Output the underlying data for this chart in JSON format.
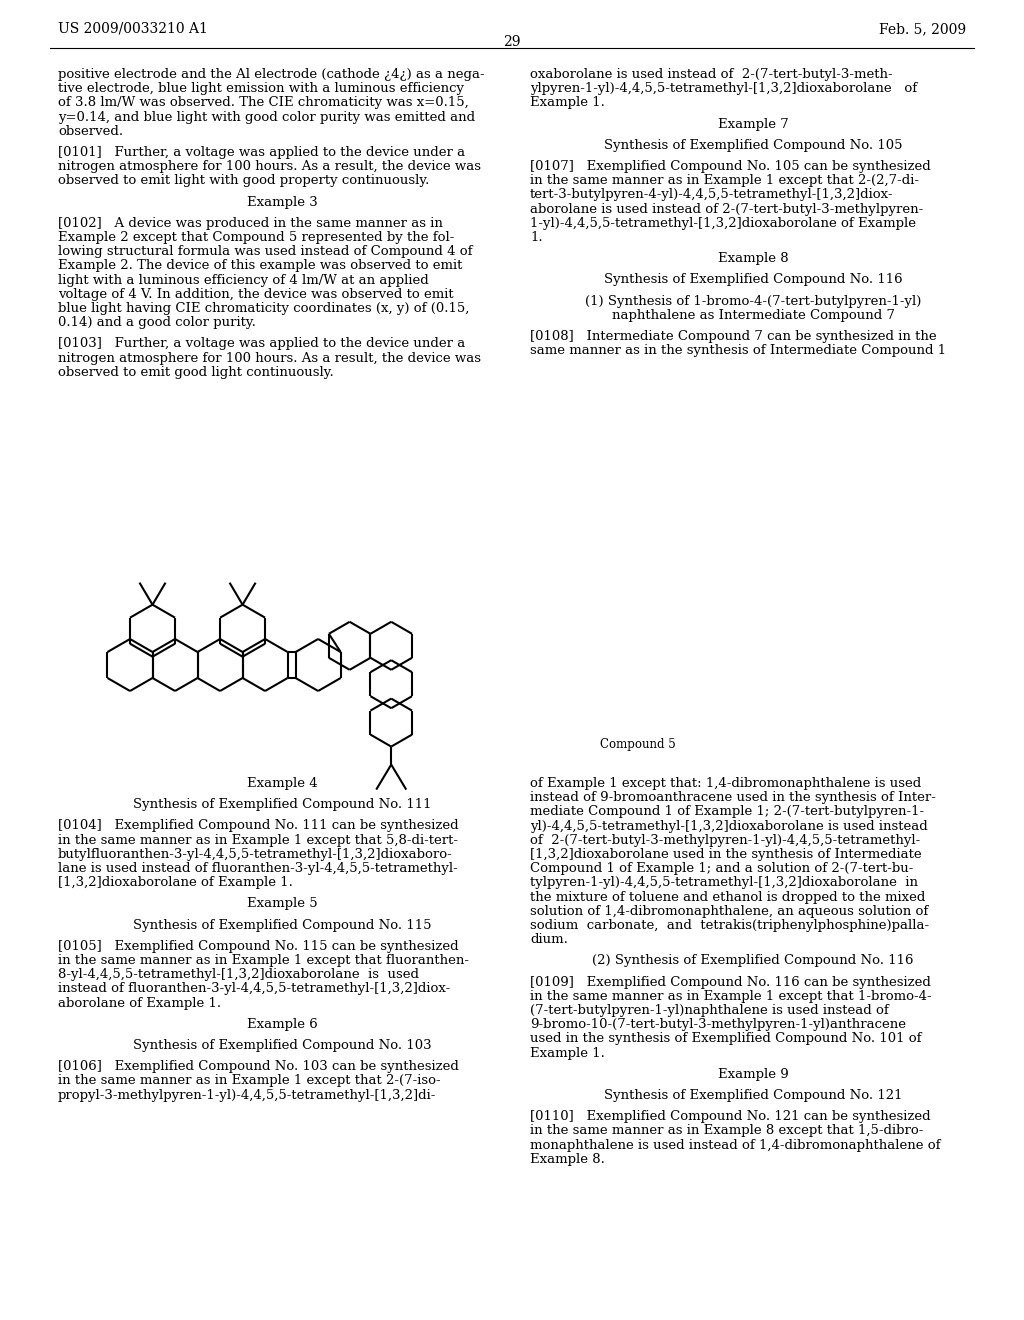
{
  "title_left": "US 2009/0033210 A1",
  "title_right": "Feb. 5, 2009",
  "page_number": "29",
  "background_color": "#ffffff",
  "top_left_text": [
    {
      "type": "body",
      "text": "positive electrode and the Al electrode (cathode ¿4¿) as a nega-\ntive electrode, blue light emission with a luminous efficiency\nof 3.8 lm/W was observed. The CIE chromaticity was x=0.15,\ny=0.14, and blue light with good color purity was emitted and\nobserved."
    },
    {
      "type": "para_indent",
      "text": "[0101]   Further, a voltage was applied to the device under a\nnitrogen atmosphere for 100 hours. As a result, the device was\nobserved to emit light with good property continuously."
    },
    {
      "type": "center",
      "text": "Example 3"
    },
    {
      "type": "para_indent",
      "text": "[0102]   A device was produced in the same manner as in\nExample 2 except that Compound 5 represented by the fol-\nlowing structural formula was used instead of Compound 4 of\nExample 2. The device of this example was observed to emit\nlight with a luminous efficiency of 4 lm/W at an applied\nvoltage of 4 V. In addition, the device was observed to emit\nblue light having CIE chromaticity coordinates (x, y) of (0.15,\n0.14) and a good color purity."
    },
    {
      "type": "para_indent",
      "text": "[0103]   Further, a voltage was applied to the device under a\nnitrogen atmosphere for 100 hours. As a result, the device was\nobserved to emit good light continuously."
    }
  ],
  "top_right_text": [
    {
      "type": "body",
      "text": "oxaborolane is used instead of  2-(7-tert-butyl-3-meth-\nylpyren-1-yl)-4,4,5,5-tetramethyl-[1,3,2]dioxaborolane   of\nExample 1."
    },
    {
      "type": "center",
      "text": "Example 7"
    },
    {
      "type": "center",
      "text": "Synthesis of Exemplified Compound No. 105"
    },
    {
      "type": "para_indent",
      "text": "[0107]   Exemplified Compound No. 105 can be synthesized\nin the same manner as in Example 1 except that 2-(2,7-di-\ntert-3-butylpyren-4-yl)-4,4,5,5-tetramethyl-[1,3,2]diox-\naborolane is used instead of 2-(7-tert-butyl-3-methylpyren-\n1-yl)-4,4,5,5-tetramethyl-[1,3,2]dioxaborolane of Example\n1."
    },
    {
      "type": "center",
      "text": "Example 8"
    },
    {
      "type": "center",
      "text": "Synthesis of Exemplified Compound No. 116"
    },
    {
      "type": "center",
      "text": "(1) Synthesis of 1-bromo-4-(7-tert-butylpyren-1-yl)\nnaphthalene as Intermediate Compound 7"
    },
    {
      "type": "para_indent",
      "text": "[0108]   Intermediate Compound 7 can be synthesized in the\nsame manner as in the synthesis of Intermediate Compound 1"
    }
  ],
  "bot_left_text": [
    {
      "type": "center",
      "text": "Example 4"
    },
    {
      "type": "center",
      "text": "Synthesis of Exemplified Compound No. 111"
    },
    {
      "type": "para_indent",
      "text": "[0104]   Exemplified Compound No. 111 can be synthesized\nin the same manner as in Example 1 except that 5,8-di-tert-\nbutylfluoranthen-3-yl-4,4,5,5-tetramethyl-[1,3,2]dioxaboro-\nlane is used instead of fluoranthen-3-yl-4,4,5,5-tetramethyl-\n[1,3,2]dioxaborolane of Example 1."
    },
    {
      "type": "center",
      "text": "Example 5"
    },
    {
      "type": "center",
      "text": "Synthesis of Exemplified Compound No. 115"
    },
    {
      "type": "para_indent",
      "text": "[0105]   Exemplified Compound No. 115 can be synthesized\nin the same manner as in Example 1 except that fluoranthen-\n8-yl-4,4,5,5-tetramethyl-[1,3,2]dioxaborolane  is  used\ninstead of fluoranthen-3-yl-4,4,5,5-tetramethyl-[1,3,2]diox-\naborolane of Example 1."
    },
    {
      "type": "center",
      "text": "Example 6"
    },
    {
      "type": "center",
      "text": "Synthesis of Exemplified Compound No. 103"
    },
    {
      "type": "para_indent",
      "text": "[0106]   Exemplified Compound No. 103 can be synthesized\nin the same manner as in Example 1 except that 2-(7-iso-\npropyl-3-methylpyren-1-yl)-4,4,5,5-tetramethyl-[1,3,2]di-"
    }
  ],
  "bot_right_text": [
    {
      "type": "body",
      "text": "of Example 1 except that: 1,4-dibromonaphthalene is used\ninstead of 9-bromoanthracene used in the synthesis of Inter-\nmediate Compound 1 of Example 1; 2-(7-tert-butylpyren-1-\nyl)-4,4,5,5-tetramethyl-[1,3,2]dioxaborolane is used instead\nof  2-(7-tert-butyl-3-methylpyren-1-yl)-4,4,5,5-tetramethyl-\n[1,3,2]dioxaborolane used in the synthesis of Intermediate\nCompound 1 of Example 1; and a solution of 2-(7-tert-bu-\ntylpyren-1-yl)-4,4,5,5-tetramethyl-[1,3,2]dioxaborolane  in\nthe mixture of toluene and ethanol is dropped to the mixed\nsolution of 1,4-dibromonaphthalene, an aqueous solution of\nsodium  carbonate,  and  tetrakis(triphenylphosphine)palla-\ndium."
    },
    {
      "type": "center",
      "text": "(2) Synthesis of Exemplified Compound No. 116"
    },
    {
      "type": "para_indent",
      "text": "[0109]   Exemplified Compound No. 116 can be synthesized\nin the same manner as in Example 1 except that 1-bromo-4-\n(7-tert-butylpyren-1-yl)naphthalene is used instead of\n9-bromo-10-(7-tert-butyl-3-methylpyren-1-yl)anthracene\nused in the synthesis of Exemplified Compound No. 101 of\nExample 1."
    },
    {
      "type": "center",
      "text": "Example 9"
    },
    {
      "type": "center",
      "text": "Synthesis of Exemplified Compound No. 121"
    },
    {
      "type": "para_indent",
      "text": "[0110]   Exemplified Compound No. 121 can be synthesized\nin the same manner as in Example 8 except that 1,5-dibro-\nmonaphthalene is used instead of 1,4-dibromonaphthalene of\nExample 8."
    }
  ]
}
